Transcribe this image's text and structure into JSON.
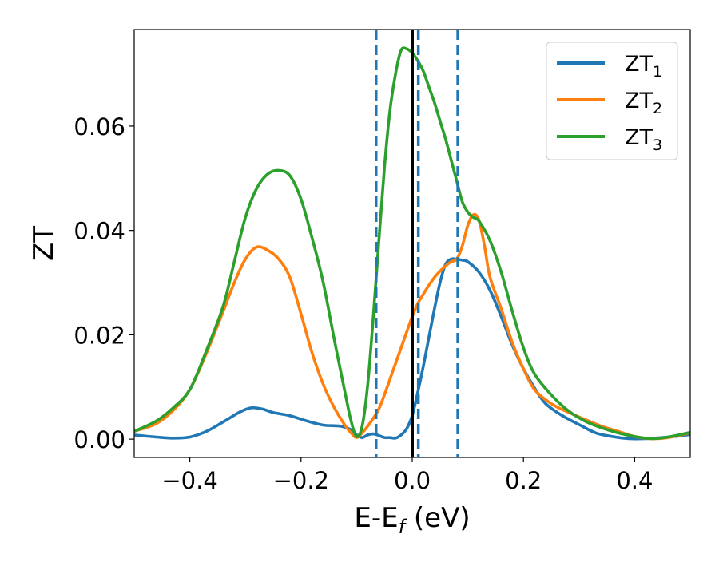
{
  "chart_data": {
    "type": "line",
    "title": "",
    "xlabel": "E-E",
    "xlabel_subscript": "f",
    "xlabel_unit": " (eV)",
    "ylabel": "ZT",
    "xlim": [
      -0.5,
      0.5
    ],
    "ylim": [
      -0.0035,
      0.0785
    ],
    "xticks": [
      -0.4,
      -0.2,
      0.0,
      0.2,
      0.4
    ],
    "xtick_labels": [
      "−0.4",
      "−0.2",
      "0.0",
      "0.2",
      "0.4"
    ],
    "yticks": [
      0.0,
      0.02,
      0.04,
      0.06
    ],
    "ytick_labels": [
      "0.00",
      "0.02",
      "0.04",
      "0.06"
    ],
    "grid": false,
    "legend_position": "top-right",
    "series": [
      {
        "name": "ZT",
        "name_subscript": "1",
        "color": "#1f77b4",
        "x": [
          -0.5,
          -0.46,
          -0.43,
          -0.4,
          -0.37,
          -0.34,
          -0.31,
          -0.29,
          -0.27,
          -0.25,
          -0.22,
          -0.19,
          -0.16,
          -0.13,
          -0.11,
          -0.1,
          -0.09,
          -0.08,
          -0.07,
          -0.06,
          -0.05,
          -0.04,
          -0.03,
          -0.02,
          -0.01,
          0.0,
          0.01,
          0.02,
          0.03,
          0.04,
          0.05,
          0.06,
          0.07,
          0.08,
          0.09,
          0.1,
          0.12,
          0.14,
          0.16,
          0.18,
          0.2,
          0.22,
          0.24,
          0.27,
          0.3,
          0.33,
          0.36,
          0.39,
          0.42,
          0.45,
          0.48,
          0.5
        ],
        "y": [
          0.0008,
          0.0004,
          0.0002,
          0.0004,
          0.0015,
          0.0033,
          0.0052,
          0.006,
          0.0058,
          0.0051,
          0.0045,
          0.0035,
          0.0027,
          0.0025,
          0.0018,
          0.0008,
          0.0003,
          0.0008,
          0.001,
          0.0007,
          0.0003,
          0.0003,
          0.0002,
          0.0008,
          0.002,
          0.0045,
          0.009,
          0.014,
          0.0195,
          0.025,
          0.03,
          0.0335,
          0.0345,
          0.0345,
          0.0343,
          0.034,
          0.032,
          0.0285,
          0.0235,
          0.018,
          0.0135,
          0.0098,
          0.0068,
          0.0045,
          0.0028,
          0.0012,
          0.0005,
          0.0001,
          0.0001,
          0.0003,
          0.0006,
          0.0009
        ]
      },
      {
        "name": "ZT",
        "name_subscript": "2",
        "color": "#ff7f0e",
        "x": [
          -0.5,
          -0.46,
          -0.43,
          -0.4,
          -0.37,
          -0.34,
          -0.32,
          -0.3,
          -0.28,
          -0.26,
          -0.24,
          -0.22,
          -0.2,
          -0.18,
          -0.16,
          -0.14,
          -0.12,
          -0.11,
          -0.1,
          -0.09,
          -0.08,
          -0.07,
          -0.06,
          -0.05,
          -0.04,
          -0.03,
          -0.02,
          -0.01,
          0.0,
          0.01,
          0.02,
          0.03,
          0.04,
          0.05,
          0.06,
          0.07,
          0.08,
          0.09,
          0.1,
          0.11,
          0.12,
          0.13,
          0.14,
          0.16,
          0.18,
          0.2,
          0.22,
          0.25,
          0.28,
          0.31,
          0.34,
          0.37,
          0.4,
          0.43,
          0.46,
          0.5
        ],
        "y": [
          0.0015,
          0.003,
          0.0055,
          0.0095,
          0.0165,
          0.0245,
          0.03,
          0.0345,
          0.0368,
          0.0362,
          0.0345,
          0.031,
          0.024,
          0.0165,
          0.0105,
          0.006,
          0.0025,
          0.0012,
          0.0003,
          0.0012,
          0.0025,
          0.004,
          0.0058,
          0.0085,
          0.0115,
          0.0145,
          0.0175,
          0.0205,
          0.0235,
          0.026,
          0.0278,
          0.0295,
          0.031,
          0.0322,
          0.0332,
          0.034,
          0.0345,
          0.037,
          0.041,
          0.043,
          0.042,
          0.037,
          0.031,
          0.025,
          0.0185,
          0.0135,
          0.0095,
          0.0068,
          0.0052,
          0.0038,
          0.0025,
          0.0015,
          0.0005,
          0.0001,
          0.0003,
          0.0012
        ]
      },
      {
        "name": "ZT",
        "name_subscript": "3",
        "color": "#2ca02c",
        "x": [
          -0.5,
          -0.46,
          -0.43,
          -0.4,
          -0.37,
          -0.34,
          -0.32,
          -0.3,
          -0.28,
          -0.26,
          -0.24,
          -0.22,
          -0.2,
          -0.18,
          -0.16,
          -0.14,
          -0.12,
          -0.11,
          -0.1,
          -0.09,
          -0.08,
          -0.07,
          -0.06,
          -0.05,
          -0.04,
          -0.03,
          -0.02,
          -0.01,
          0.0,
          0.01,
          0.02,
          0.03,
          0.04,
          0.05,
          0.06,
          0.07,
          0.08,
          0.09,
          0.1,
          0.11,
          0.12,
          0.14,
          0.16,
          0.18,
          0.2,
          0.22,
          0.25,
          0.28,
          0.31,
          0.34,
          0.37,
          0.4,
          0.43,
          0.46,
          0.5
        ],
        "y": [
          0.0015,
          0.0035,
          0.006,
          0.0095,
          0.017,
          0.0255,
          0.034,
          0.0425,
          0.048,
          0.0508,
          0.0515,
          0.0505,
          0.046,
          0.0385,
          0.03,
          0.019,
          0.0085,
          0.0035,
          0.0005,
          0.0025,
          0.0105,
          0.0235,
          0.038,
          0.052,
          0.063,
          0.07,
          0.0745,
          0.0748,
          0.074,
          0.0725,
          0.0705,
          0.0675,
          0.0645,
          0.061,
          0.0575,
          0.0535,
          0.0495,
          0.0455,
          0.0435,
          0.0425,
          0.0418,
          0.038,
          0.032,
          0.0245,
          0.0175,
          0.0125,
          0.0085,
          0.0055,
          0.0035,
          0.0022,
          0.0012,
          0.0005,
          0.0001,
          0.0004,
          0.0013
        ]
      }
    ],
    "vertical_lines": [
      {
        "x": 0.0,
        "color": "#000000",
        "style": "solid"
      },
      {
        "x": -0.065,
        "color": "#1f77b4",
        "style": "dashed"
      },
      {
        "x": 0.011,
        "color": "#1f77b4",
        "style": "dashed"
      },
      {
        "x": 0.082,
        "color": "#1f77b4",
        "style": "dashed"
      }
    ]
  }
}
